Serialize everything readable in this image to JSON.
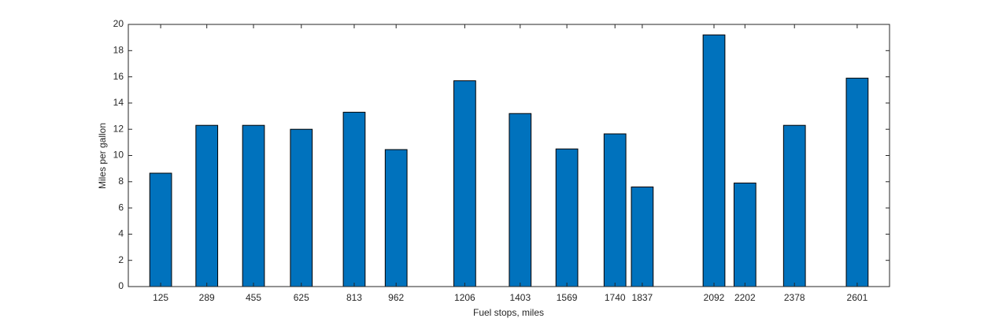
{
  "chart_data": {
    "type": "bar",
    "x_label": "Fuel stops, miles",
    "y_label": "Miles per gallon",
    "x": [
      125,
      289,
      455,
      625,
      813,
      962,
      1206,
      1403,
      1569,
      1740,
      1837,
      2092,
      2202,
      2378,
      2601
    ],
    "values": [
      8.65,
      12.3,
      12.3,
      12.0,
      13.3,
      10.45,
      15.7,
      13.2,
      10.5,
      11.65,
      7.6,
      19.2,
      7.9,
      12.3,
      15.9
    ],
    "color": "#0072bd",
    "xlim": [
      10,
      2716
    ],
    "xticks": [
      125,
      289,
      455,
      625,
      813,
      962,
      1206,
      1403,
      1569,
      1740,
      1837,
      2092,
      2202,
      2378,
      2601
    ],
    "ylim": [
      0,
      20
    ],
    "yticks": [
      0,
      2,
      4,
      6,
      8,
      10,
      12,
      14,
      16,
      18,
      20
    ],
    "grid": false
  }
}
